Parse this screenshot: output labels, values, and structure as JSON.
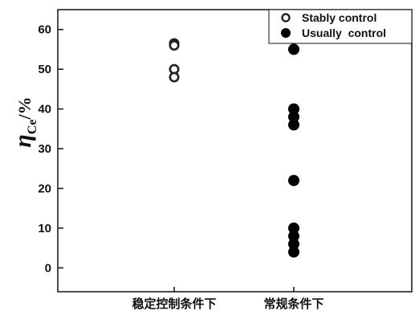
{
  "chart_data": {
    "type": "scatter",
    "title": "",
    "ylabel": {
      "symbol": "η",
      "subscript": "Ce",
      "unit": "/%"
    },
    "xlabel": "",
    "categories": [
      "稳定控制条件下",
      "常规条件下"
    ],
    "ylim": [
      -6,
      65
    ],
    "yticks": [
      0,
      10,
      20,
      30,
      40,
      50,
      60
    ],
    "grid": false,
    "legend": "top-right",
    "series": [
      {
        "name": "Stably control",
        "marker": "open-circle",
        "color": "#222222",
        "points": [
          {
            "category": 0,
            "y": 56.5
          },
          {
            "category": 0,
            "y": 56
          },
          {
            "category": 0,
            "y": 50
          },
          {
            "category": 0,
            "y": 48
          }
        ]
      },
      {
        "name": "Usually  control",
        "marker": "filled-circle",
        "color": "#000000",
        "points": [
          {
            "category": 1,
            "y": 55
          },
          {
            "category": 1,
            "y": 40
          },
          {
            "category": 1,
            "y": 38
          },
          {
            "category": 1,
            "y": 36
          },
          {
            "category": 1,
            "y": 22
          },
          {
            "category": 1,
            "y": 10
          },
          {
            "category": 1,
            "y": 8
          },
          {
            "category": 1,
            "y": 6
          },
          {
            "category": 1,
            "y": 4
          }
        ]
      }
    ]
  }
}
